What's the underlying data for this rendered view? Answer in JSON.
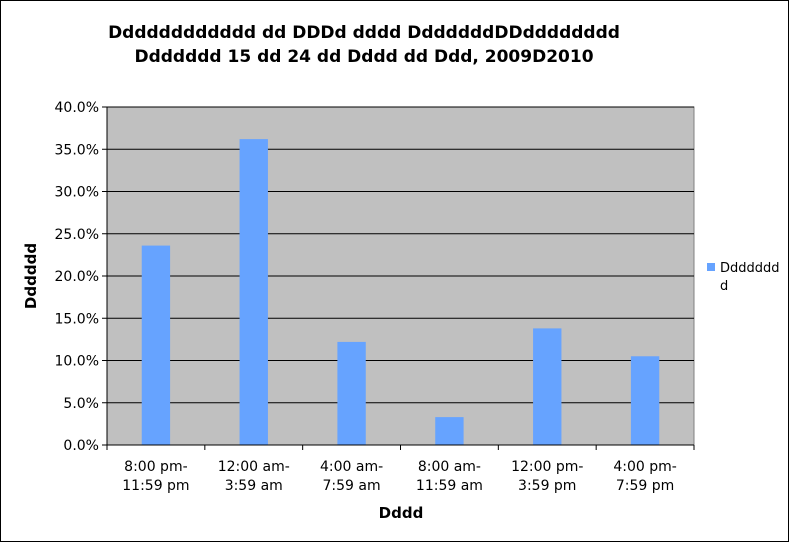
{
  "chart_data": {
    "type": "bar",
    "title": [
      "Dddddddddddd dd DDDd dddd DddddddDDdddddddd",
      "Ddddddd 15 dd 24 dd Dddd dd Ddd, 2009D2010"
    ],
    "xlabel": "Dddd",
    "ylabel": "Dddddd",
    "categories": [
      [
        "8:00 pm-",
        "11:59 pm"
      ],
      [
        "12:00 am-",
        "3:59 am"
      ],
      [
        "4:00 am-",
        "7:59 am"
      ],
      [
        "8:00 am-",
        "11:59 am"
      ],
      [
        "12:00 pm-",
        "3:59 pm"
      ],
      [
        "4:00 pm-",
        "7:59 pm"
      ]
    ],
    "series": [
      {
        "name": [
          "Ddddddd",
          "d"
        ],
        "values": [
          23.6,
          36.2,
          12.2,
          3.3,
          13.8,
          10.5
        ]
      }
    ],
    "ylim": [
      0,
      40
    ],
    "yticks": [
      "0.0%",
      "5.0%",
      "10.0%",
      "15.0%",
      "20.0%",
      "25.0%",
      "30.0%",
      "35.0%",
      "40.0%"
    ],
    "grid": true,
    "legend": "right",
    "colors": {
      "bar": "#66A3FF",
      "plot_bg": "#C0C0C0",
      "grid": "#000000"
    }
  }
}
